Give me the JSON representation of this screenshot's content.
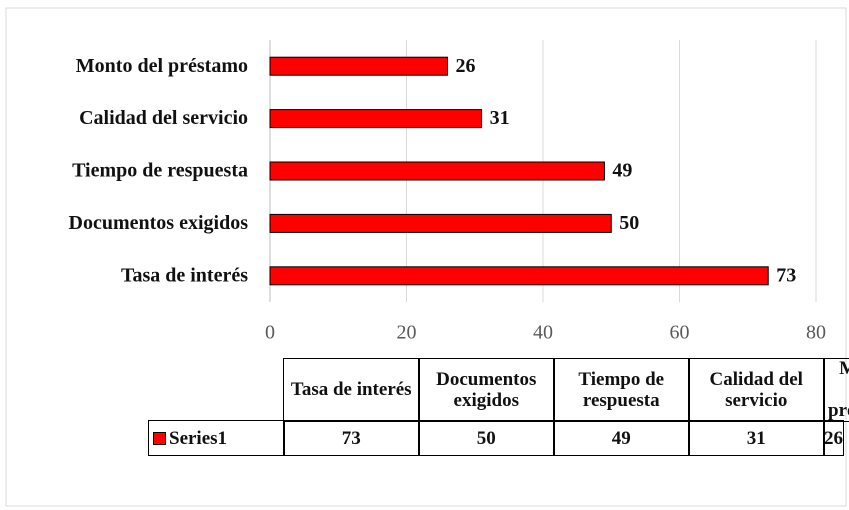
{
  "chart_data": {
    "type": "barh",
    "categories": [
      "Tasa de interés",
      "Documentos exigidos",
      "Tiempo de respuesta",
      "Calidad del servicio",
      "Monto del préstamo"
    ],
    "series": [
      {
        "name": "Series1",
        "color": "#ff0000",
        "values": [
          73,
          50,
          49,
          31,
          26
        ]
      }
    ],
    "xlim": [
      0,
      80
    ],
    "xticks": [
      0,
      20,
      40,
      60,
      80
    ],
    "grid": true,
    "data_table": true
  }
}
